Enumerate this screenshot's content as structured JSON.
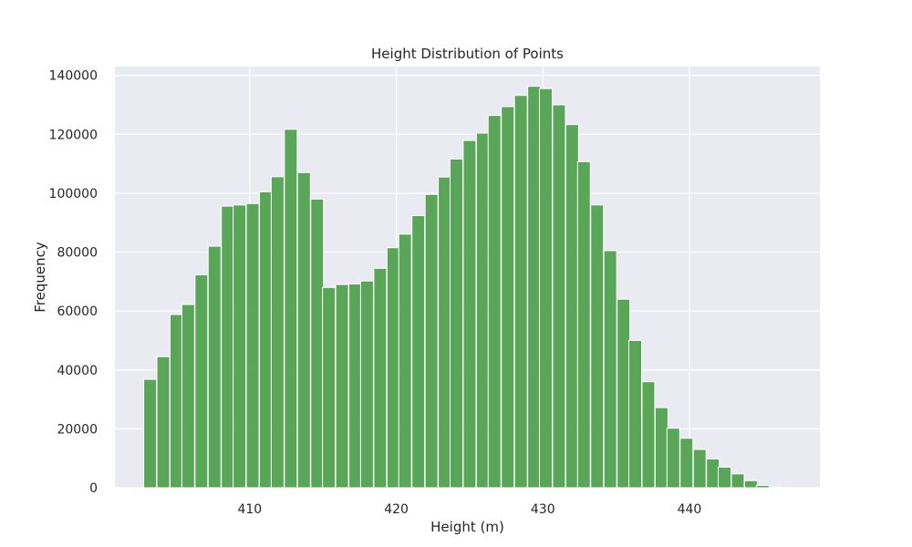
{
  "chart_data": {
    "type": "bar",
    "title": "Height Distribution of Points",
    "xlabel": "Height (m)",
    "ylabel": "Frequency",
    "xlim": [
      400.8,
      448.9
    ],
    "ylim": [
      0,
      143000
    ],
    "grid": true,
    "colors": {
      "background": "#eaeaf2",
      "grid": "#ffffff",
      "bar": "#4c9f4c",
      "bar_edge": "#ffffff"
    },
    "xticks": [
      410,
      420,
      430,
      440
    ],
    "xtick_labels": [
      "410",
      "420",
      "430",
      "440"
    ],
    "yticks": [
      0,
      20000,
      40000,
      60000,
      80000,
      100000,
      120000,
      140000
    ],
    "ytick_labels": [
      "0",
      "20000",
      "40000",
      "60000",
      "80000",
      "100000",
      "120000",
      "140000"
    ],
    "bin_width": 0.87,
    "x": [
      403.2,
      404.1,
      405.0,
      405.8,
      406.7,
      407.6,
      408.5,
      409.3,
      410.2,
      411.1,
      411.9,
      412.8,
      413.7,
      414.6,
      415.4,
      416.3,
      417.2,
      418.0,
      418.9,
      419.8,
      420.6,
      421.5,
      422.4,
      423.3,
      424.1,
      425.0,
      425.9,
      426.7,
      427.6,
      428.5,
      429.4,
      430.2,
      431.1,
      432.0,
      432.8,
      433.7,
      434.6,
      435.5,
      436.3,
      437.2,
      438.1,
      438.9,
      439.8,
      440.7,
      441.6,
      442.4,
      443.3,
      444.2,
      445.0,
      445.9
    ],
    "values": [
      36800,
      44500,
      58800,
      62200,
      72300,
      82000,
      95600,
      96000,
      96500,
      100500,
      105600,
      121700,
      107000,
      98000,
      68000,
      69000,
      69200,
      70200,
      74500,
      81500,
      86100,
      92400,
      99600,
      105500,
      111600,
      117900,
      120400,
      126400,
      129400,
      133200,
      136300,
      135500,
      130000,
      123300,
      110700,
      96000,
      80500,
      64000,
      50000,
      36000,
      27200,
      20200,
      16800,
      13000,
      9800,
      7000,
      4700,
      2400,
      800,
      200
    ]
  }
}
